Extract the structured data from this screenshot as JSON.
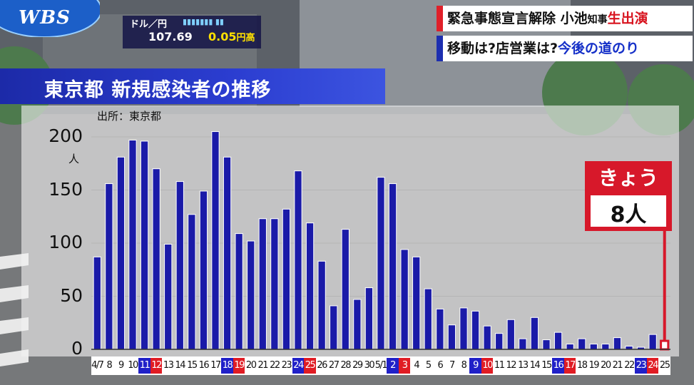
{
  "broadcast": {
    "logo": "WBS",
    "fx": {
      "label": "ドル／円",
      "rate": "107.69",
      "change": "0.05",
      "change_unit": "円高"
    },
    "headline1": {
      "part1": "緊急事態宣言解除",
      "part2": "小池",
      "part3": "知事",
      "part4": "生出演"
    },
    "headline2": {
      "part1": "移動は?店営業は?",
      "part2": "今後の道のり"
    }
  },
  "chart_data": {
    "type": "bar",
    "title": "東京都 新規感染者の推移",
    "source": "出所：東京都",
    "ylabel": "人",
    "ylim": [
      0,
      200
    ],
    "yticks": [
      0,
      50,
      100,
      150,
      200
    ],
    "bar_color": "#1a1aa8",
    "highlight_color": "#d7182a",
    "callout": {
      "label": "きょう",
      "value": "8人"
    },
    "categories": [
      "4/7",
      "8",
      "9",
      "10",
      "11",
      "12",
      "13",
      "14",
      "15",
      "16",
      "17",
      "18",
      "19",
      "20",
      "21",
      "22",
      "23",
      "24",
      "25",
      "26",
      "27",
      "28",
      "29",
      "30",
      "5/1",
      "2",
      "3",
      "4",
      "5",
      "6",
      "7",
      "8",
      "9",
      "10",
      "11",
      "12",
      "13",
      "14",
      "15",
      "16",
      "17",
      "18",
      "19",
      "20",
      "21",
      "22",
      "23",
      "24",
      "25"
    ],
    "day_types": [
      "n",
      "n",
      "n",
      "n",
      "sat",
      "sun",
      "n",
      "n",
      "n",
      "n",
      "n",
      "sat",
      "sun",
      "n",
      "n",
      "n",
      "n",
      "sat",
      "sun",
      "n",
      "n",
      "n",
      "n",
      "n",
      "n",
      "sat",
      "sun",
      "n",
      "n",
      "n",
      "n",
      "n",
      "sat",
      "sun",
      "n",
      "n",
      "n",
      "n",
      "n",
      "sat",
      "sun",
      "n",
      "n",
      "n",
      "n",
      "n",
      "sat",
      "sun",
      "n"
    ],
    "values": [
      87,
      156,
      181,
      197,
      196,
      170,
      99,
      158,
      127,
      149,
      205,
      181,
      109,
      102,
      123,
      123,
      132,
      168,
      119,
      83,
      41,
      113,
      47,
      58,
      162,
      156,
      94,
      87,
      57,
      38,
      23,
      39,
      36,
      22,
      15,
      28,
      10,
      30,
      9,
      16,
      5,
      10,
      5,
      5,
      11,
      3,
      2,
      14,
      8
    ]
  }
}
